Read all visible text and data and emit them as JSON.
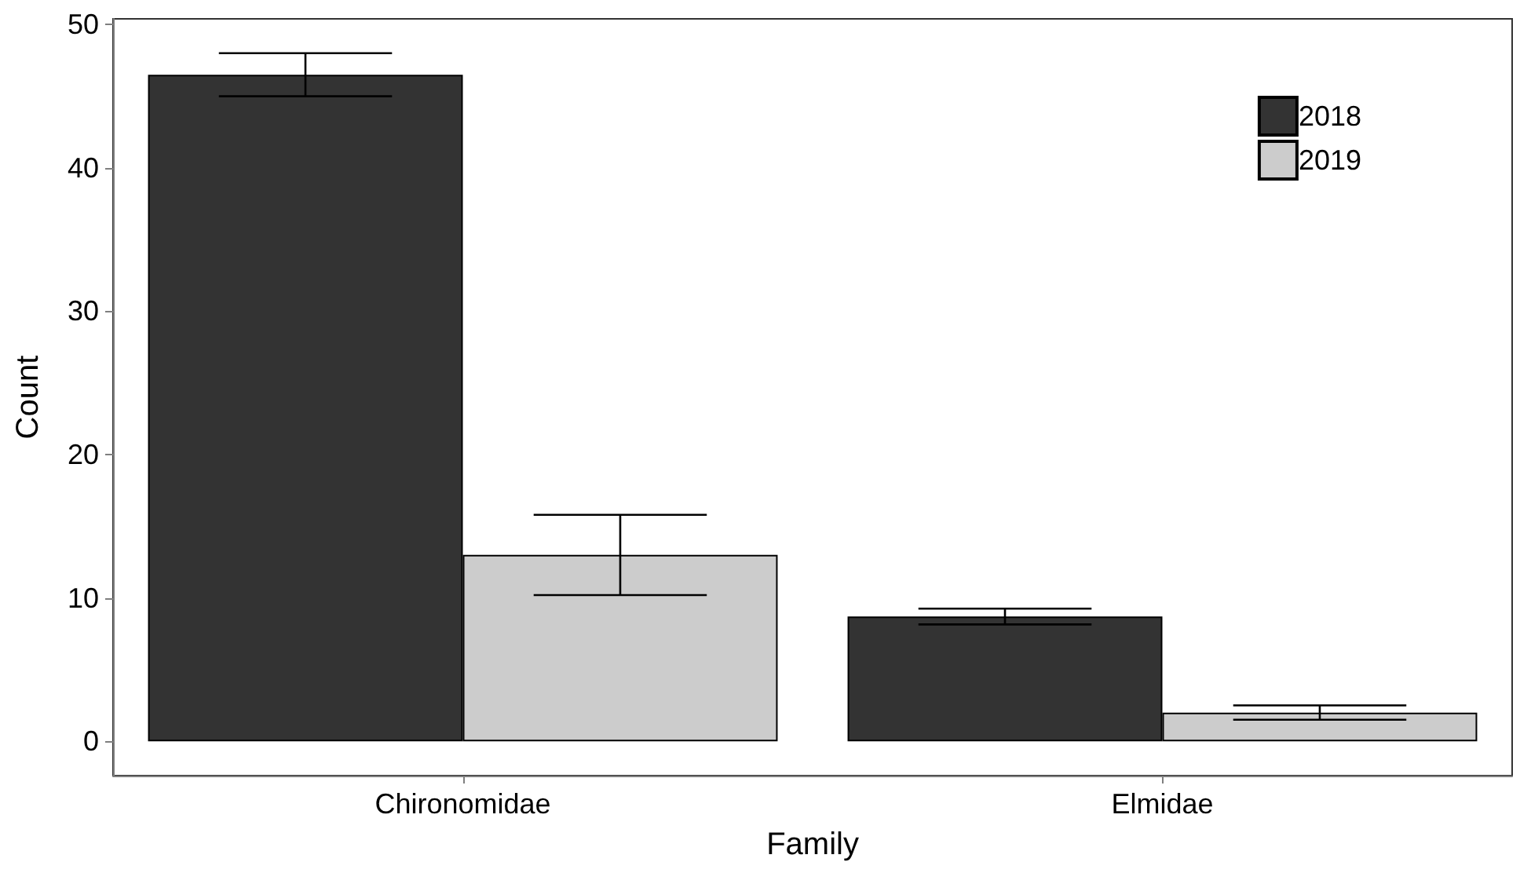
{
  "chart_data": {
    "type": "bar",
    "xlabel": "Family",
    "ylabel": "Count",
    "categories": [
      "Chironomidae",
      "Elmidae"
    ],
    "series": [
      {
        "name": "2018",
        "color": "#333333",
        "values": [
          46.5,
          8.7
        ],
        "errors": [
          1.5,
          0.55
        ]
      },
      {
        "name": "2019",
        "color": "#cccccc",
        "values": [
          13.0,
          2.0
        ],
        "errors": [
          2.8,
          0.5
        ]
      }
    ],
    "ylim": [
      -2.4,
      50.4
    ],
    "yticks": [
      0,
      10,
      20,
      30,
      40,
      50
    ],
    "grid": false,
    "legend": "top right"
  }
}
